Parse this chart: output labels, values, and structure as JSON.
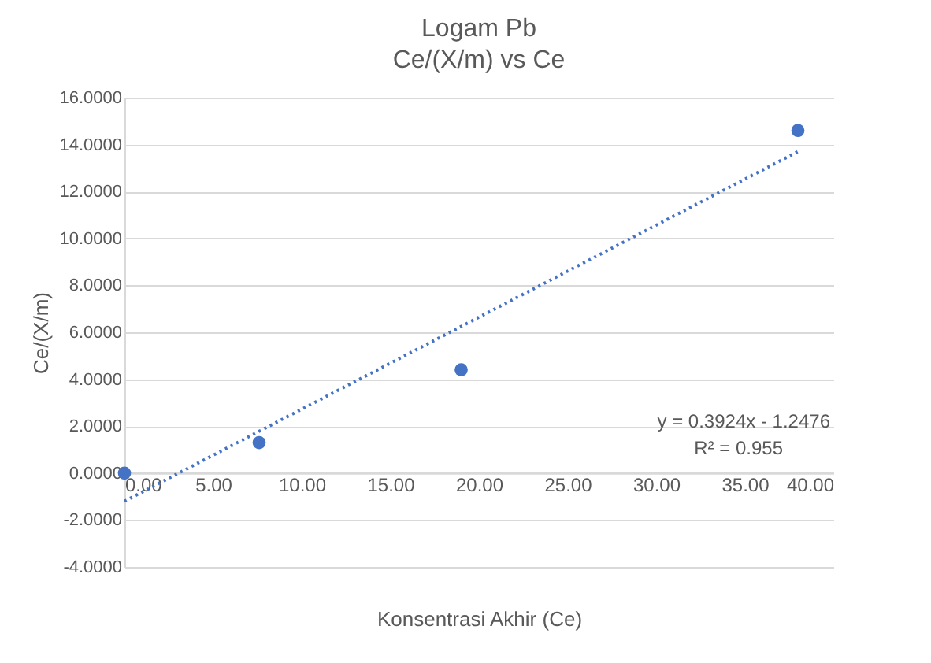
{
  "chart_data": {
    "type": "scatter",
    "title": "Logam Pb",
    "subtitle": "Ce/(X/m) vs Ce",
    "xlabel": "Konsentrasi Akhir (Ce)",
    "ylabel": "Ce/(X/m)",
    "series": [
      {
        "type": "scatter",
        "color": "#4472c4",
        "x": [
          0,
          7.6,
          19,
          38
        ],
        "values": [
          0,
          1.3,
          4.4,
          14.6
        ],
        "marker": "circle"
      },
      {
        "type": "line",
        "color": "#4472c4",
        "x": [
          0,
          38
        ],
        "values": [
          -1.2,
          13.7
        ],
        "line_style": "dotted",
        "marker": "none"
      }
    ],
    "annotations": [
      "y = 0.3924x - 1.2476",
      "R² = 0.955"
    ],
    "xlim": [
      0,
      40
    ],
    "xticks": [
      {
        "value": 0,
        "label": "0.00"
      },
      {
        "value": 5,
        "label": "5.00"
      },
      {
        "value": 10,
        "label": "10.00"
      },
      {
        "value": 15,
        "label": "15.00"
      },
      {
        "value": 20,
        "label": "20.00"
      },
      {
        "value": 25,
        "label": "25.00"
      },
      {
        "value": 30,
        "label": "30.00"
      },
      {
        "value": 35,
        "label": "35.00"
      },
      {
        "value": 40,
        "label": "40.00"
      }
    ],
    "ylim": [
      -4,
      16
    ],
    "yticks": [
      {
        "value": -4,
        "label": "-4.0000"
      },
      {
        "value": -2,
        "label": "-2.0000"
      },
      {
        "value": 0,
        "label": "0.0000"
      },
      {
        "value": 2,
        "label": "2.0000"
      },
      {
        "value": 4,
        "label": "4.0000"
      },
      {
        "value": 6,
        "label": "6.0000"
      },
      {
        "value": 8,
        "label": "8.0000"
      },
      {
        "value": 10,
        "label": "10.0000"
      },
      {
        "value": 12,
        "label": "12.0000"
      },
      {
        "value": 14,
        "label": "14.0000"
      },
      {
        "value": 16,
        "label": "16.0000"
      }
    ],
    "grid": "y"
  }
}
